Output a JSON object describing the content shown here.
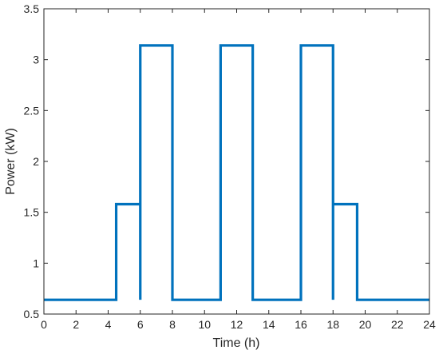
{
  "chart_data": {
    "type": "line",
    "title": "",
    "xlabel": "Time (h)",
    "ylabel": "Power (kW)",
    "xlim": [
      0,
      24
    ],
    "ylim": [
      0.5,
      3.5
    ],
    "xticks": [
      "0",
      "2",
      "4",
      "6",
      "8",
      "10",
      "12",
      "14",
      "16",
      "18",
      "20",
      "22",
      "24"
    ],
    "yticks": [
      "0.5",
      "1",
      "1.5",
      "2",
      "2.5",
      "3",
      "3.5"
    ],
    "grid": false,
    "legend": "none",
    "line_color": "#0072BD",
    "series": [
      {
        "x": [
          0,
          4.5,
          4.5,
          6,
          6,
          6,
          8,
          8,
          11,
          11,
          13,
          13,
          16,
          16,
          18,
          18,
          18,
          19.5,
          19.5,
          24
        ],
        "y": [
          0.64,
          0.64,
          1.58,
          1.58,
          0.64,
          3.14,
          3.14,
          0.64,
          0.64,
          3.14,
          3.14,
          0.64,
          0.64,
          3.14,
          3.14,
          0.64,
          1.58,
          1.58,
          0.64,
          0.64
        ]
      }
    ]
  }
}
